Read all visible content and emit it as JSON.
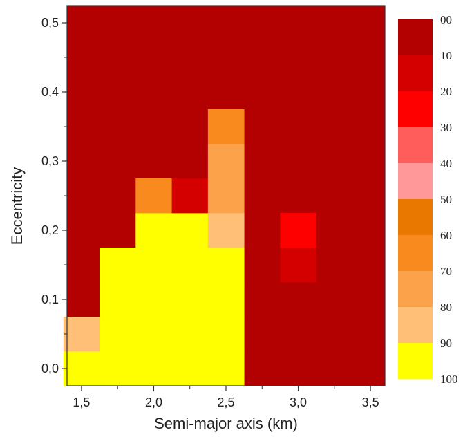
{
  "chart_data": {
    "type": "heatmap",
    "title": "",
    "xlabel": "Semi-major axis (km)",
    "ylabel": "Eccentricity",
    "xlim": [
      1.4,
      3.6
    ],
    "ylim": [
      -0.025,
      0.525
    ],
    "x_ticks": [
      "1,5",
      "2,0",
      "2,5",
      "3,0",
      "3,5"
    ],
    "x_tick_values": [
      1.5,
      2.0,
      2.5,
      3.0,
      3.5
    ],
    "y_ticks": [
      "0,0",
      "0,1",
      "0,2",
      "0,3",
      "0,4",
      "0,5"
    ],
    "y_tick_values": [
      0.0,
      0.1,
      0.2,
      0.3,
      0.4,
      0.5
    ],
    "background_value": 0,
    "cell_size": {
      "x": 0.25,
      "y": 0.05
    },
    "cells": [
      {
        "x": 1.5,
        "y": 0.0,
        "value": 100
      },
      {
        "x": 1.5,
        "y": 0.05,
        "value": 80
      },
      {
        "x": 1.75,
        "y": 0.0,
        "value": 100
      },
      {
        "x": 1.75,
        "y": 0.05,
        "value": 100
      },
      {
        "x": 1.75,
        "y": 0.1,
        "value": 100
      },
      {
        "x": 1.75,
        "y": 0.15,
        "value": 100
      },
      {
        "x": 2.0,
        "y": 0.0,
        "value": 100
      },
      {
        "x": 2.0,
        "y": 0.05,
        "value": 100
      },
      {
        "x": 2.0,
        "y": 0.1,
        "value": 100
      },
      {
        "x": 2.0,
        "y": 0.15,
        "value": 100
      },
      {
        "x": 2.0,
        "y": 0.2,
        "value": 100
      },
      {
        "x": 2.0,
        "y": 0.25,
        "value": 60
      },
      {
        "x": 2.25,
        "y": 0.0,
        "value": 100
      },
      {
        "x": 2.25,
        "y": 0.05,
        "value": 100
      },
      {
        "x": 2.25,
        "y": 0.1,
        "value": 100
      },
      {
        "x": 2.25,
        "y": 0.15,
        "value": 100
      },
      {
        "x": 2.25,
        "y": 0.2,
        "value": 100
      },
      {
        "x": 2.25,
        "y": 0.25,
        "value": 10
      },
      {
        "x": 2.5,
        "y": 0.0,
        "value": 100
      },
      {
        "x": 2.5,
        "y": 0.05,
        "value": 100
      },
      {
        "x": 2.5,
        "y": 0.1,
        "value": 100
      },
      {
        "x": 2.5,
        "y": 0.15,
        "value": 100
      },
      {
        "x": 2.5,
        "y": 0.2,
        "value": 80
      },
      {
        "x": 2.5,
        "y": 0.25,
        "value": 70
      },
      {
        "x": 2.5,
        "y": 0.3,
        "value": 70
      },
      {
        "x": 2.5,
        "y": 0.35,
        "value": 60
      },
      {
        "x": 3.0,
        "y": 0.15,
        "value": 10
      },
      {
        "x": 3.0,
        "y": 0.2,
        "value": 20
      }
    ],
    "colorbar": {
      "labels": [
        "00",
        "10",
        "20",
        "30",
        "40",
        "50",
        "60",
        "70",
        "80",
        "90",
        "100"
      ],
      "bands": [
        {
          "from": 0,
          "to": 10,
          "color": "#b30000"
        },
        {
          "from": 10,
          "to": 20,
          "color": "#d40000"
        },
        {
          "from": 20,
          "to": 30,
          "color": "#ff0000"
        },
        {
          "from": 30,
          "to": 40,
          "color": "#ff5c5c"
        },
        {
          "from": 40,
          "to": 50,
          "color": "#ff9999"
        },
        {
          "from": 50,
          "to": 60,
          "color": "#e87800"
        },
        {
          "from": 60,
          "to": 70,
          "color": "#f98b1e"
        },
        {
          "from": 70,
          "to": 80,
          "color": "#fca24a"
        },
        {
          "from": 80,
          "to": 90,
          "color": "#ffbf77"
        },
        {
          "from": 90,
          "to": 100,
          "color": "#ffff00"
        }
      ]
    }
  }
}
